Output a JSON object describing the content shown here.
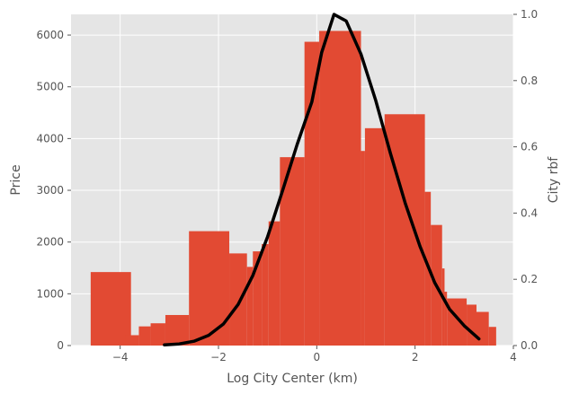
{
  "chart_data": {
    "type": "bar",
    "style": "ggplot",
    "xlabel": "Log City Center (km)",
    "ylabel": "Price",
    "y2label": "City rbf",
    "xlim": [
      -5.0,
      4.0
    ],
    "ylim": [
      0,
      6400
    ],
    "y2lim": [
      0.0,
      1.0
    ],
    "xticks": [
      -4,
      -2,
      0,
      2,
      4
    ],
    "yticks": [
      0,
      1000,
      2000,
      3000,
      4000,
      5000,
      6000
    ],
    "y2ticks": [
      0.0,
      0.2,
      0.4,
      0.6,
      0.8,
      1.0
    ],
    "grid": true,
    "colors": {
      "bars": "#E24A33",
      "rbf": "#000000",
      "panel": "#E5E5E5",
      "grid": "#FFFFFF",
      "text": "#555555"
    },
    "bars": [
      {
        "x0": -4.6,
        "x1": -3.78,
        "value": 1420
      },
      {
        "x0": -3.9,
        "x1": -3.62,
        "value": 200
      },
      {
        "x0": -3.62,
        "x1": -3.38,
        "value": 370
      },
      {
        "x0": -3.38,
        "x1": -3.08,
        "value": 430
      },
      {
        "x0": -3.08,
        "x1": -2.6,
        "value": 590
      },
      {
        "x0": -2.6,
        "x1": -1.78,
        "value": 2210
      },
      {
        "x0": -1.78,
        "x1": -1.42,
        "value": 1780
      },
      {
        "x0": -1.42,
        "x1": -1.3,
        "value": 1520
      },
      {
        "x0": -1.3,
        "x1": -1.12,
        "value": 1820
      },
      {
        "x0": -1.12,
        "x1": -0.98,
        "value": 1960
      },
      {
        "x0": -0.98,
        "x1": -0.75,
        "value": 2400
      },
      {
        "x0": -0.75,
        "x1": -0.25,
        "value": 3640
      },
      {
        "x0": -0.25,
        "x1": 0.05,
        "value": 5870
      },
      {
        "x0": 0.05,
        "x1": 0.9,
        "value": 6080
      },
      {
        "x0": 0.9,
        "x1": 0.98,
        "value": 3760
      },
      {
        "x0": 0.98,
        "x1": 1.38,
        "value": 4200
      },
      {
        "x0": 1.38,
        "x1": 2.2,
        "value": 4470
      },
      {
        "x0": 2.2,
        "x1": 2.32,
        "value": 2970
      },
      {
        "x0": 2.32,
        "x1": 2.55,
        "value": 2330
      },
      {
        "x0": 2.55,
        "x1": 2.6,
        "value": 1490
      },
      {
        "x0": 2.6,
        "x1": 2.65,
        "value": 1040
      },
      {
        "x0": 2.65,
        "x1": 3.05,
        "value": 910
      },
      {
        "x0": 3.05,
        "x1": 3.25,
        "value": 790
      },
      {
        "x0": 3.25,
        "x1": 3.5,
        "value": 650
      },
      {
        "x0": 3.5,
        "x1": 3.65,
        "value": 360
      }
    ],
    "rbf_curve": {
      "peak_x": 0.35,
      "x": [
        -3.1,
        -2.8,
        -2.5,
        -2.2,
        -1.9,
        -1.6,
        -1.3,
        -1.0,
        -0.7,
        -0.4,
        -0.1,
        0.1,
        0.35,
        0.6,
        0.9,
        1.2,
        1.5,
        1.8,
        2.1,
        2.4,
        2.7,
        3.0,
        3.3
      ],
      "y": [
        0.002,
        0.005,
        0.013,
        0.031,
        0.065,
        0.124,
        0.212,
        0.329,
        0.466,
        0.607,
        0.736,
        0.885,
        1.0,
        0.98,
        0.88,
        0.74,
        0.58,
        0.43,
        0.3,
        0.19,
        0.11,
        0.06,
        0.02
      ]
    }
  }
}
